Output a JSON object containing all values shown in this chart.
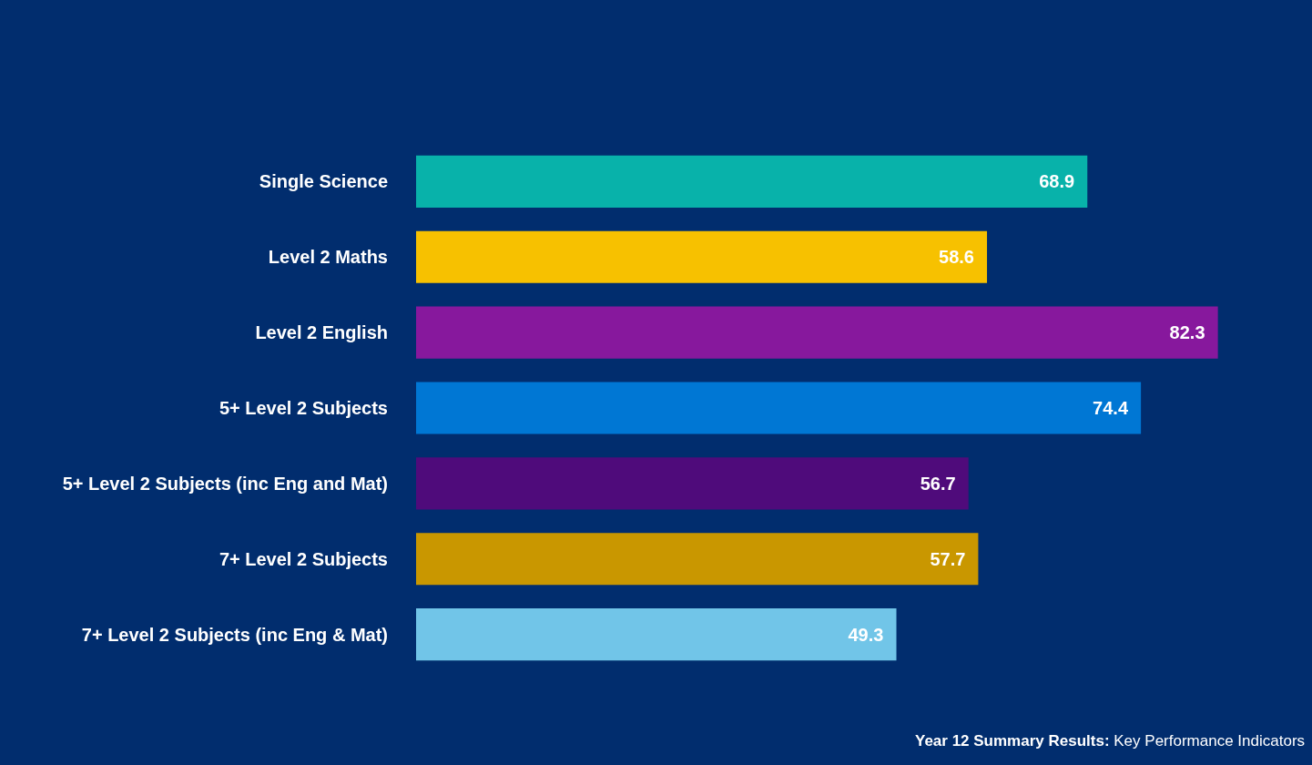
{
  "chart_data": {
    "type": "bar",
    "orientation": "horizontal",
    "categories": [
      "Single Science",
      "Level 2 Maths",
      "Level 2 English",
      "5+ Level 2 Subjects",
      "5+ Level 2 Subjects (inc Eng and Mat)",
      "7+ Level 2 Subjects",
      "7+ Level 2 Subjects (inc Eng & Mat)"
    ],
    "values": [
      68.9,
      58.6,
      82.3,
      74.4,
      56.7,
      57.7,
      49.3
    ],
    "colors": [
      "#08b2aa",
      "#f7c100",
      "#87189d",
      "#0077d4",
      "#4f0b7b",
      "#c99700",
      "#71c5e8"
    ],
    "data_labels": true,
    "grid": false,
    "legend": false,
    "annotations": [
      "Year 12 Summary Results: Key Performance Indicators"
    ]
  }
}
